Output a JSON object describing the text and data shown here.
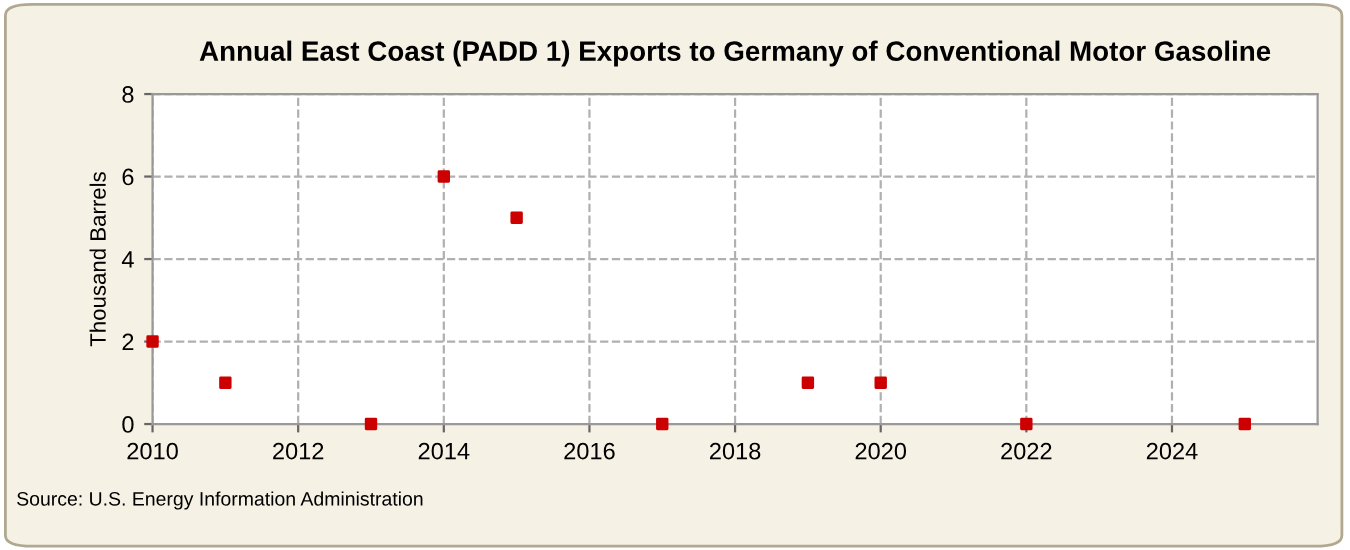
{
  "chart_data": {
    "type": "scatter",
    "title": "Annual East Coast (PADD 1) Exports to Germany of Conventional Motor Gasoline",
    "ylabel": "Thousand Barrels",
    "x": [
      2010,
      2011,
      2013,
      2014,
      2015,
      2017,
      2019,
      2020,
      2022,
      2025
    ],
    "series": [
      {
        "color": "#cc0000",
        "values": [
          2,
          1,
          0,
          6,
          5,
          0,
          1,
          1,
          0,
          0
        ]
      }
    ],
    "xlim": [
      2010,
      2026
    ],
    "xticks": [
      2010,
      2012,
      2014,
      2016,
      2018,
      2020,
      2022,
      2024
    ],
    "ylim": [
      0,
      8
    ],
    "yticks": [
      0,
      2,
      4,
      6,
      8
    ],
    "grid": true,
    "line_style": "dashed",
    "marker": "square",
    "annotations": [
      "Source: U.S. Energy Information Administration"
    ]
  }
}
